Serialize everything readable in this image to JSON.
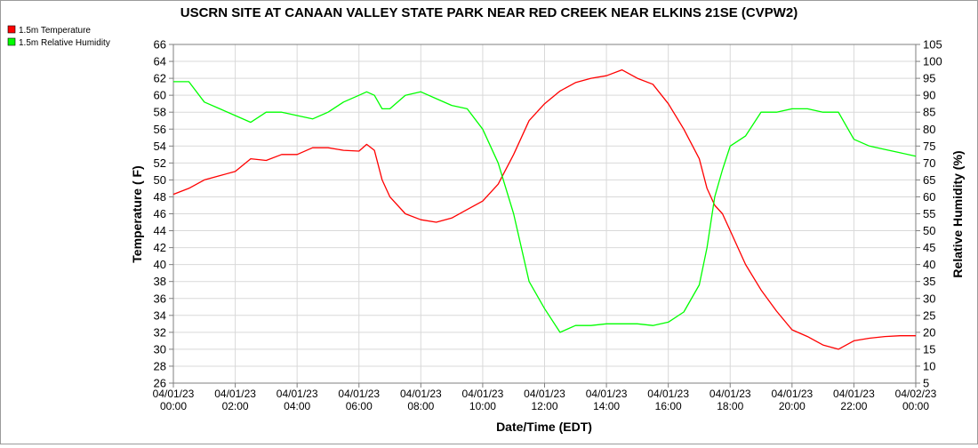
{
  "chart_data": {
    "type": "line",
    "title": "USCRN SITE AT CANAAN VALLEY STATE PARK NEAR RED CREEK NEAR ELKINS 21SE (CVPW2)",
    "xlabel": "Date/Time (EDT)",
    "ylabel_left": "Temperature ( F)",
    "ylabel_right": "Relative Humidity (%)",
    "xlim_hours": [
      0,
      24
    ],
    "ylim_left": [
      26,
      66
    ],
    "ylim_right": [
      5,
      105
    ],
    "left_ticks": [
      "26",
      "28",
      "30",
      "32",
      "34",
      "36",
      "38",
      "40",
      "42",
      "44",
      "46",
      "48",
      "50",
      "52",
      "54",
      "56",
      "58",
      "60",
      "62",
      "64",
      "66"
    ],
    "right_ticks": [
      "5",
      "10",
      "15",
      "20",
      "25",
      "30",
      "35",
      "40",
      "45",
      "50",
      "55",
      "60",
      "65",
      "70",
      "75",
      "80",
      "85",
      "90",
      "95",
      "100",
      "105"
    ],
    "x_ticks": [
      {
        "hour": 0,
        "date": "04/01/23",
        "time": "00:00"
      },
      {
        "hour": 2,
        "date": "04/01/23",
        "time": "02:00"
      },
      {
        "hour": 4,
        "date": "04/01/23",
        "time": "04:00"
      },
      {
        "hour": 6,
        "date": "04/01/23",
        "time": "06:00"
      },
      {
        "hour": 8,
        "date": "04/01/23",
        "time": "08:00"
      },
      {
        "hour": 10,
        "date": "04/01/23",
        "time": "10:00"
      },
      {
        "hour": 12,
        "date": "04/01/23",
        "time": "12:00"
      },
      {
        "hour": 14,
        "date": "04/01/23",
        "time": "14:00"
      },
      {
        "hour": 16,
        "date": "04/01/23",
        "time": "16:00"
      },
      {
        "hour": 18,
        "date": "04/01/23",
        "time": "18:00"
      },
      {
        "hour": 20,
        "date": "04/01/23",
        "time": "20:00"
      },
      {
        "hour": 22,
        "date": "04/01/23",
        "time": "22:00"
      },
      {
        "hour": 24,
        "date": "04/02/23",
        "time": "00:00"
      }
    ],
    "grid": true,
    "legend_position": "top-left",
    "series": [
      {
        "name": "1.5m Temperature",
        "color": "#ff0000",
        "axis": "left",
        "x": [
          0,
          0.5,
          1,
          1.5,
          2,
          2.5,
          3,
          3.5,
          4,
          4.5,
          5,
          5.5,
          6,
          6.25,
          6.5,
          6.75,
          7,
          7.5,
          8,
          8.5,
          9,
          9.5,
          10,
          10.5,
          11,
          11.5,
          12,
          12.5,
          13,
          13.5,
          14,
          14.5,
          15,
          15.5,
          16,
          16.5,
          17,
          17.25,
          17.5,
          17.75,
          18,
          18.5,
          19,
          19.5,
          20,
          20.5,
          21,
          21.5,
          22,
          22.5,
          23,
          23.5,
          24
        ],
        "values": [
          48.3,
          49,
          50,
          50.5,
          51,
          52.5,
          52.3,
          53,
          53,
          53.8,
          53.8,
          53.5,
          53.4,
          54.2,
          53.5,
          50,
          48,
          46,
          45.3,
          45,
          45.5,
          46.5,
          47.5,
          49.5,
          53,
          57,
          59,
          60.5,
          61.5,
          62,
          62.3,
          63,
          62,
          61.3,
          59,
          56,
          52.5,
          49,
          47,
          46,
          44,
          40,
          37,
          34.5,
          32.3,
          31.5,
          30.5,
          30,
          31,
          31.3,
          31.5,
          31.6,
          31.6
        ]
      },
      {
        "name": "1.5m Relative Humidity",
        "color": "#00ff00",
        "axis": "right",
        "x": [
          0,
          0.5,
          1,
          1.5,
          2,
          2.5,
          3,
          3.5,
          4,
          4.5,
          5,
          5.5,
          6,
          6.25,
          6.5,
          6.75,
          7,
          7.5,
          8,
          8.5,
          9,
          9.5,
          10,
          10.5,
          11,
          11.5,
          12,
          12.5,
          13,
          13.5,
          14,
          14.5,
          15,
          15.5,
          16,
          16.5,
          17,
          17.25,
          17.5,
          17.75,
          18,
          18.5,
          19,
          19.5,
          20,
          20.5,
          21,
          21.5,
          22,
          22.5,
          23,
          23.5,
          24
        ],
        "values": [
          94,
          94,
          88,
          86,
          84,
          82,
          85,
          85,
          84,
          83,
          85,
          88,
          90,
          91,
          90,
          86,
          86,
          90,
          91,
          89,
          87,
          86,
          80,
          70,
          55,
          35,
          27,
          20,
          22,
          22,
          22.5,
          22.5,
          22.5,
          22,
          23,
          26,
          34,
          45,
          60,
          68,
          75,
          78,
          85,
          85,
          86,
          86,
          85,
          85,
          77,
          75,
          74,
          73,
          72
        ]
      }
    ]
  }
}
